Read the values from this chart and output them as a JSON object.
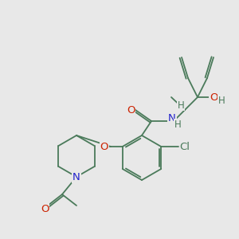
{
  "bg_color": "#e8e8e8",
  "bond_color": "#4a7a5a",
  "atom_colors": {
    "O": "#cc2200",
    "N": "#2222cc",
    "Cl": "#4a7a5a",
    "H": "#4a7a5a",
    "C": "#4a7a5a"
  },
  "lw": 1.3
}
